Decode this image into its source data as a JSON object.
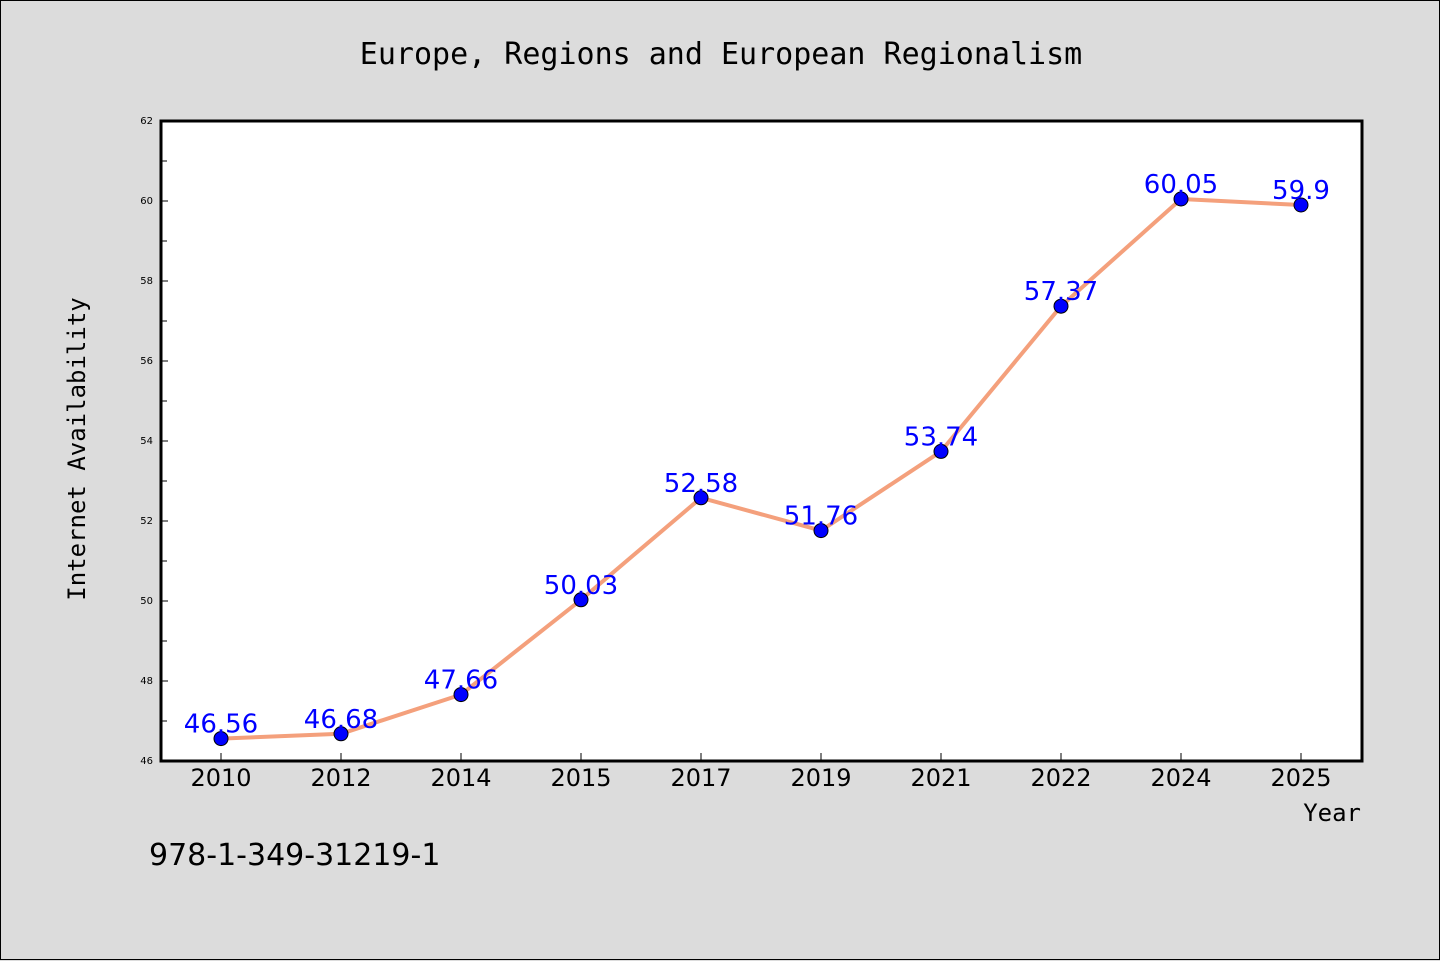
{
  "chart_data": {
    "type": "line",
    "title": "Europe, Regions and European Regionalism",
    "xlabel": "Year",
    "ylabel": "Internet Availability",
    "categories": [
      "2010",
      "2012",
      "2014",
      "2015",
      "2017",
      "2019",
      "2021",
      "2022",
      "2024",
      "2025"
    ],
    "series": [
      {
        "values": [
          46.56,
          46.68,
          47.66,
          50.03,
          52.58,
          51.76,
          53.74,
          57.37,
          60.05,
          59.9
        ],
        "data_labels": [
          "46.56",
          "46.68",
          "47.66",
          "50.03",
          "52.58",
          "51.76",
          "53.74",
          "57.37",
          "60.05",
          "59.9"
        ]
      }
    ],
    "ylim": [
      46,
      62
    ],
    "yticks": [
      46,
      48,
      50,
      52,
      54,
      56,
      58,
      60,
      62
    ],
    "ytick_labels": [
      "46",
      "48",
      "50",
      "52",
      "54",
      "56",
      "58",
      "60",
      "62"
    ],
    "grid": false,
    "line_color": "#f4a07c",
    "marker_color": "#0000ff",
    "label_color": "#0000ff",
    "background_color": "#dcdcdc",
    "plot_background_color": "#ffffff"
  },
  "footer_text": "978-1-349-31219-1"
}
